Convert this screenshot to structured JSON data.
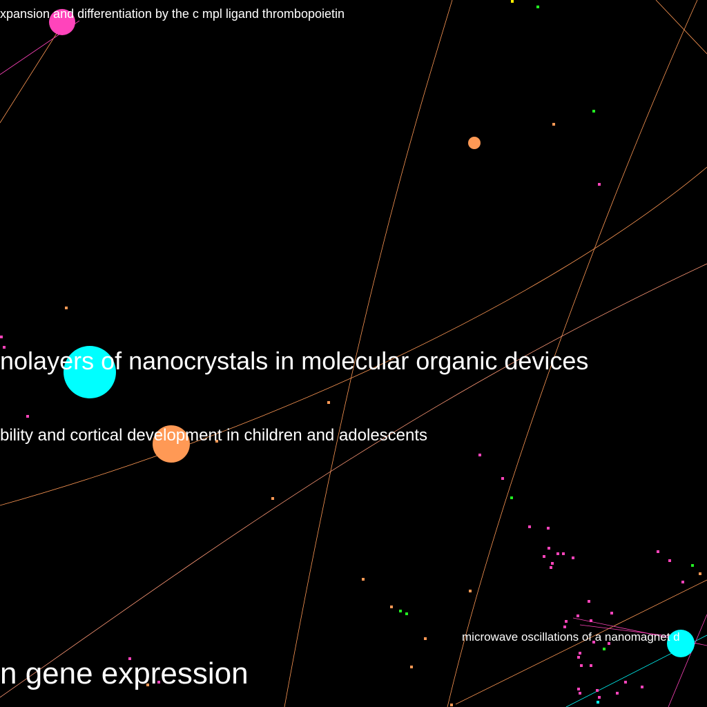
{
  "colors": {
    "background": "#000000",
    "orange": "#ff9955",
    "cyan": "#00ffff",
    "magenta": "#ff44bb",
    "green": "#22ee22",
    "yellow": "#ffee00",
    "label": "#ffffff"
  },
  "labels": {
    "l1": "xpansion and differentiation by the c mpl ligand thrombopoietin",
    "l2": "nolayers of nanocrystals in molecular organic devices",
    "l3": "bility and cortical development in children and adolescents",
    "l4": "microwave oscillations of a nanomagnet d",
    "l5": "n gene expression"
  }
}
